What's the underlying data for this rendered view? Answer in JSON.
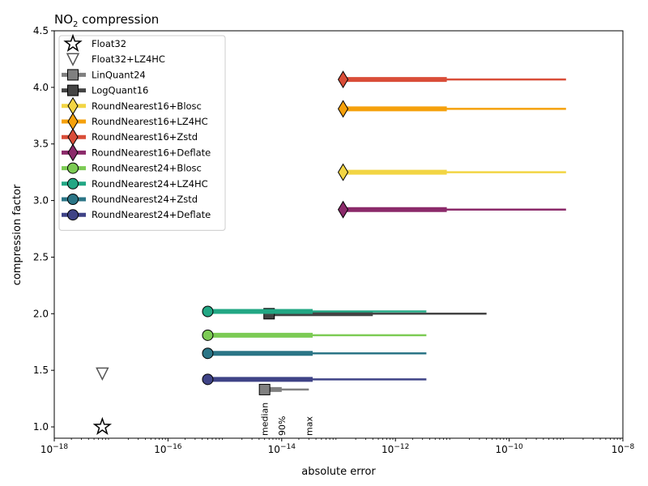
{
  "chart_data": {
    "type": "scatter",
    "title_main": "NO",
    "title_sub": "2",
    "title_rest": " compression",
    "xlabel": "absolute error",
    "ylabel": "compression factor",
    "xscale": "log",
    "xlim": [
      1e-18,
      1e-08
    ],
    "ylim": [
      0.9,
      4.5
    ],
    "xticks": [
      {
        "exp": -18,
        "base": "10",
        "sup": "−18"
      },
      {
        "exp": -16,
        "base": "10",
        "sup": "−16"
      },
      {
        "exp": -14,
        "base": "10",
        "sup": "−14"
      },
      {
        "exp": -12,
        "base": "10",
        "sup": "−12"
      },
      {
        "exp": -10,
        "base": "10",
        "sup": "−10"
      },
      {
        "exp": -8,
        "base": "10",
        "sup": "−8"
      }
    ],
    "yticks": [
      {
        "value": 1.0,
        "label": "1.0"
      },
      {
        "value": 1.5,
        "label": "1.5"
      },
      {
        "value": 2.0,
        "label": "2.0"
      },
      {
        "value": 2.5,
        "label": "2.5"
      },
      {
        "value": 3.0,
        "label": "3.0"
      },
      {
        "value": 3.5,
        "label": "3.5"
      },
      {
        "value": 4.0,
        "label": "4.0"
      },
      {
        "value": 4.5,
        "label": "4.5"
      }
    ],
    "legend_position": "top-left",
    "series": [
      {
        "name": "Float32",
        "marker": "star",
        "color": "#ffffff",
        "edge": "#000000",
        "cf": 1.0,
        "median": 7e-18
      },
      {
        "name": "Float32+LZ4HC",
        "marker": "triangle-down",
        "color": "#ffffff",
        "edge": "#555555",
        "cf": 1.47,
        "median": 7e-18
      },
      {
        "name": "LinQuant24",
        "marker": "square",
        "color": "#808080",
        "edge": "#000000",
        "cf": 1.33,
        "median": 5e-15,
        "p90": 1e-14,
        "max": 3e-14
      },
      {
        "name": "LogQuant16",
        "marker": "square",
        "color": "#444444",
        "edge": "#000000",
        "cf": 2.0,
        "median": 6e-15,
        "p90": 4e-13,
        "max": 4e-11
      },
      {
        "name": "RoundNearest16+Blosc",
        "marker": "diamond",
        "color": "#f2d544",
        "edge": "#000000",
        "cf": 3.25,
        "median": 1.2e-13,
        "p90": 8e-12,
        "max": 1e-09
      },
      {
        "name": "RoundNearest16+LZ4HC",
        "marker": "diamond",
        "color": "#f5a10c",
        "edge": "#000000",
        "cf": 3.81,
        "median": 1.2e-13,
        "p90": 8e-12,
        "max": 1e-09
      },
      {
        "name": "RoundNearest16+Zstd",
        "marker": "diamond",
        "color": "#d94d38",
        "edge": "#000000",
        "cf": 4.07,
        "median": 1.2e-13,
        "p90": 8e-12,
        "max": 1e-09
      },
      {
        "name": "RoundNearest16+Deflate",
        "marker": "diamond",
        "color": "#8b2a6a",
        "edge": "#000000",
        "cf": 2.92,
        "median": 1.2e-13,
        "p90": 8e-12,
        "max": 1e-09
      },
      {
        "name": "RoundNearest24+Blosc",
        "marker": "circle",
        "color": "#7ccb54",
        "edge": "#000000",
        "cf": 1.81,
        "median": 5e-16,
        "p90": 3.5e-14,
        "max": 3.5e-12
      },
      {
        "name": "RoundNearest24+LZ4HC",
        "marker": "circle",
        "color": "#22a784",
        "edge": "#000000",
        "cf": 2.02,
        "median": 5e-16,
        "p90": 3.5e-14,
        "max": 3.5e-12
      },
      {
        "name": "RoundNearest24+Zstd",
        "marker": "circle",
        "color": "#2b7586",
        "edge": "#000000",
        "cf": 1.65,
        "median": 5e-16,
        "p90": 3.5e-14,
        "max": 3.5e-12
      },
      {
        "name": "RoundNearest24+Deflate",
        "marker": "circle",
        "color": "#3f4386",
        "edge": "#000000",
        "cf": 1.42,
        "median": 5e-16,
        "p90": 3.5e-14,
        "max": 3.5e-12
      }
    ],
    "annotations": [
      {
        "text": "median",
        "x": 5e-15
      },
      {
        "text": "90%",
        "x": 1e-14
      },
      {
        "text": "max",
        "x": 3e-14
      }
    ]
  }
}
